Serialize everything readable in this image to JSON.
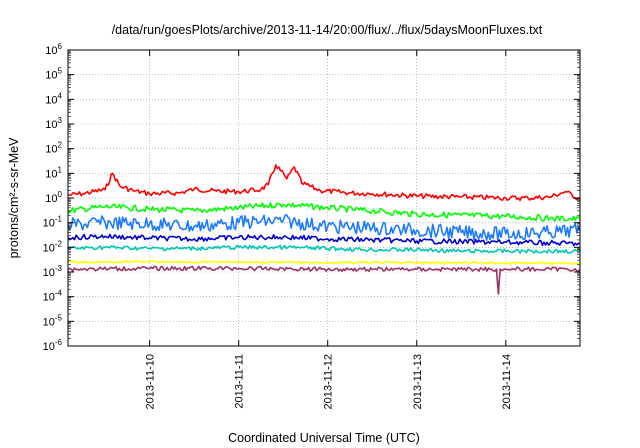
{
  "chart_data": {
    "type": "line",
    "title": "/data/run/goesPlots/archive/2013-11-14/20:00/flux/../flux/5daysMoonFluxes.txt",
    "xlabel": "Coordinated Universal Time (UTC)",
    "ylabel": "protons/cm²-s-sr-MeV",
    "yscale": "log",
    "ylim": [
      1e-06,
      1000000.0
    ],
    "xlim": [
      "2013-11-09T02:00",
      "2013-11-14T20:00"
    ],
    "x_ticks": [
      "2013-11-10",
      "2013-11-11",
      "2013-11-12",
      "2013-11-13",
      "2013-11-14"
    ],
    "y_ticks": [
      {
        "base": "10",
        "exp": "-6"
      },
      {
        "base": "10",
        "exp": "-5"
      },
      {
        "base": "10",
        "exp": "-4"
      },
      {
        "base": "10",
        "exp": "-3"
      },
      {
        "base": "10",
        "exp": "-2"
      },
      {
        "base": "10",
        "exp": "-1"
      },
      {
        "base": "10",
        "exp": "0"
      },
      {
        "base": "10",
        "exp": "1"
      },
      {
        "base": "10",
        "exp": "2"
      },
      {
        "base": "10",
        "exp": "3"
      },
      {
        "base": "10",
        "exp": "4"
      },
      {
        "base": "10",
        "exp": "5"
      },
      {
        "base": "10",
        "exp": "6"
      }
    ],
    "grid": true,
    "legend": "none",
    "series": [
      {
        "color": "#ff0000",
        "x": [
          "2013-11-09T02:00",
          "2013-11-09T06:00",
          "2013-11-09T12:00",
          "2013-11-09T14:00",
          "2013-11-09T16:00",
          "2013-11-09T20:00",
          "2013-11-10T00:00",
          "2013-11-10T08:00",
          "2013-11-10T12:00",
          "2013-11-10T18:00",
          "2013-11-11T00:00",
          "2013-11-11T06:00",
          "2013-11-11T08:00",
          "2013-11-11T10:00",
          "2013-11-11T13:00",
          "2013-11-11T15:00",
          "2013-11-11T17:00",
          "2013-11-11T22:00",
          "2013-11-12T06:00",
          "2013-11-12T12:00",
          "2013-11-13T00:00",
          "2013-11-13T12:00",
          "2013-11-14T00:00",
          "2013-11-14T06:00",
          "2013-11-14T12:00",
          "2013-11-14T16:00",
          "2013-11-14T20:00"
        ],
        "y": [
          1.3,
          1.5,
          2.2,
          10,
          3,
          1.9,
          1.5,
          1.6,
          2.3,
          1.9,
          1.8,
          2.2,
          3.5,
          22,
          6,
          18,
          4,
          2,
          1.6,
          1.5,
          1.2,
          1.1,
          1.0,
          1.0,
          1.1,
          1.8,
          0.9
        ]
      },
      {
        "color": "#00ff00",
        "x": [
          "2013-11-09T02:00",
          "2013-11-09T12:00",
          "2013-11-10T00:00",
          "2013-11-10T12:00",
          "2013-11-11T00:00",
          "2013-11-11T12:00",
          "2013-11-12T00:00",
          "2013-11-12T12:00",
          "2013-11-13T00:00",
          "2013-11-13T12:00",
          "2013-11-14T00:00",
          "2013-11-14T12:00",
          "2013-11-14T20:00"
        ],
        "y": [
          0.3,
          0.45,
          0.35,
          0.3,
          0.4,
          0.55,
          0.4,
          0.3,
          0.22,
          0.2,
          0.18,
          0.15,
          0.14
        ]
      },
      {
        "color": "#1e7bff",
        "x": [
          "2013-11-09T02:00",
          "2013-11-09T12:00",
          "2013-11-10T00:00",
          "2013-11-10T12:00",
          "2013-11-11T00:00",
          "2013-11-11T12:00",
          "2013-11-12T00:00",
          "2013-11-12T12:00",
          "2013-11-13T00:00",
          "2013-11-13T12:00",
          "2013-11-14T00:00",
          "2013-11-14T12:00",
          "2013-11-14T20:00"
        ],
        "y": [
          0.08,
          0.1,
          0.09,
          0.07,
          0.1,
          0.12,
          0.07,
          0.06,
          0.05,
          0.04,
          0.035,
          0.04,
          0.05
        ]
      },
      {
        "color": "#0000d0",
        "x": [
          "2013-11-09T02:00",
          "2013-11-09T12:00",
          "2013-11-10T00:00",
          "2013-11-10T12:00",
          "2013-11-11T00:00",
          "2013-11-11T12:00",
          "2013-11-12T00:00",
          "2013-11-12T12:00",
          "2013-11-13T00:00",
          "2013-11-13T12:00",
          "2013-11-14T00:00",
          "2013-11-14T12:00",
          "2013-11-14T20:00"
        ],
        "y": [
          0.025,
          0.028,
          0.024,
          0.022,
          0.025,
          0.026,
          0.022,
          0.02,
          0.018,
          0.017,
          0.016,
          0.015,
          0.014
        ]
      },
      {
        "color": "#00c8b4",
        "x": [
          "2013-11-09T02:00",
          "2013-11-09T12:00",
          "2013-11-10T00:00",
          "2013-11-10T12:00",
          "2013-11-11T00:00",
          "2013-11-11T12:00",
          "2013-11-12T00:00",
          "2013-11-12T12:00",
          "2013-11-13T00:00",
          "2013-11-13T12:00",
          "2013-11-14T00:00",
          "2013-11-14T12:00",
          "2013-11-14T20:00"
        ],
        "y": [
          0.009,
          0.01,
          0.009,
          0.009,
          0.01,
          0.01,
          0.009,
          0.008,
          0.008,
          0.007,
          0.007,
          0.007,
          0.007
        ]
      },
      {
        "color": "#ffff00",
        "x": [
          "2013-11-09T02:00",
          "2013-11-10T00:00",
          "2013-11-11T00:00",
          "2013-11-12T00:00",
          "2013-11-13T00:00",
          "2013-11-14T00:00",
          "2013-11-14T20:00"
        ],
        "y": [
          0.0025,
          0.0026,
          0.0025,
          0.0024,
          0.0024,
          0.0023,
          0.0023
        ]
      },
      {
        "color": "#993366",
        "x": [
          "2013-11-09T02:00",
          "2013-11-10T00:00",
          "2013-11-11T00:00",
          "2013-11-12T00:00",
          "2013-11-13T00:00",
          "2013-11-13T21:30",
          "2013-11-13T22:00",
          "2013-11-13T22:30",
          "2013-11-14T00:00",
          "2013-11-14T20:00"
        ],
        "y": [
          0.0013,
          0.0014,
          0.0014,
          0.0013,
          0.0013,
          0.0013,
          0.00013,
          0.0013,
          0.0013,
          0.0013
        ]
      }
    ]
  }
}
